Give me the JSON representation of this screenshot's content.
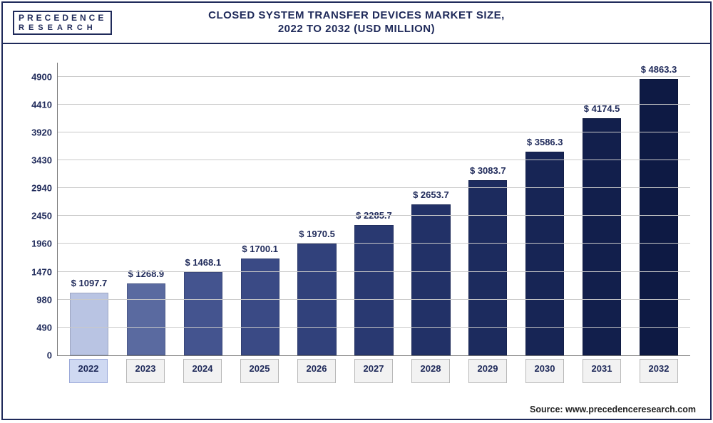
{
  "logo": {
    "line1": "PRECEDENCE",
    "line2": "RESEARCH"
  },
  "title": {
    "line1": "CLOSED SYSTEM TRANSFER DEVICES MARKET SIZE,",
    "line2": "2022 TO 2032 (USD MILLION)"
  },
  "chart": {
    "type": "bar",
    "y_axis": {
      "min": 0,
      "max": 5145,
      "ticks": [
        0,
        490,
        980,
        1470,
        1960,
        2450,
        2940,
        3430,
        3920,
        4410,
        4900
      ],
      "label_fontsize": 13,
      "label_color": "#1f2a5a",
      "grid_color": "#c9c9c9",
      "axis_color": "#7a7a7a"
    },
    "bars": [
      {
        "year": "2022",
        "value": 1097.7,
        "label": "$ 1097.7",
        "color": "#b9c4e3",
        "highlight": true
      },
      {
        "year": "2023",
        "value": 1268.9,
        "label": "$ 1268.9",
        "color": "#5a6aa0",
        "highlight": false
      },
      {
        "year": "2024",
        "value": 1468.1,
        "label": "$ 1468.1",
        "color": "#44548f",
        "highlight": false
      },
      {
        "year": "2025",
        "value": 1700.1,
        "label": "$ 1700.1",
        "color": "#3a4a85",
        "highlight": false
      },
      {
        "year": "2026",
        "value": 1970.5,
        "label": "$ 1970.5",
        "color": "#31417b",
        "highlight": false
      },
      {
        "year": "2027",
        "value": 2285.7,
        "label": "$ 2285.7",
        "color": "#293971",
        "highlight": false
      },
      {
        "year": "2028",
        "value": 2653.7,
        "label": "$ 2653.7",
        "color": "#223167",
        "highlight": false
      },
      {
        "year": "2029",
        "value": 3083.7,
        "label": "$ 3083.7",
        "color": "#1c2b5e",
        "highlight": false
      },
      {
        "year": "2030",
        "value": 3586.3,
        "label": "$ 3586.3",
        "color": "#172555",
        "highlight": false
      },
      {
        "year": "2031",
        "value": 4174.5,
        "label": "$ 4174.5",
        "color": "#121f4c",
        "highlight": false
      },
      {
        "year": "2032",
        "value": 4863.3,
        "label": "$ 4863.3",
        "color": "#0e1a44",
        "highlight": false
      }
    ],
    "bar_width_pct": 68,
    "value_label_fontsize": 13,
    "value_label_color": "#1f2a5a",
    "background_color": "#ffffff"
  },
  "source": "Source: www.precedenceresearch.com",
  "frame_color": "#1f2a5a"
}
